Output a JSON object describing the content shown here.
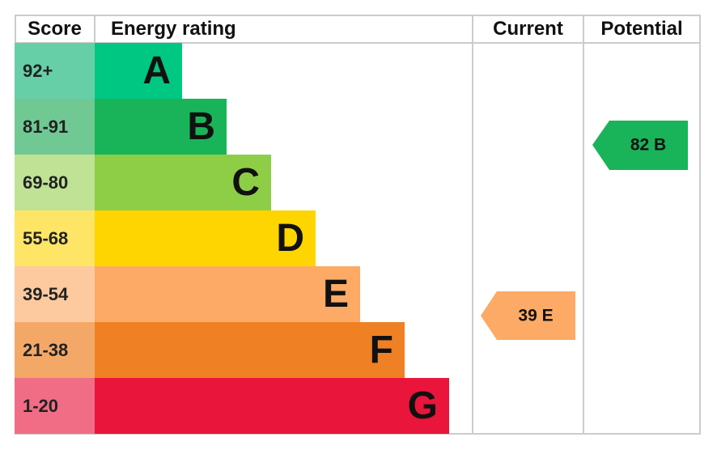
{
  "header": {
    "score": "Score",
    "energy_rating": "Energy rating",
    "current": "Current",
    "potential": "Potential"
  },
  "rows": [
    {
      "score": "92+",
      "band": "A"
    },
    {
      "score": "81-91",
      "band": "B"
    },
    {
      "score": "69-80",
      "band": "C"
    },
    {
      "score": "55-68",
      "band": "D"
    },
    {
      "score": "39-54",
      "band": "E"
    },
    {
      "score": "21-38",
      "band": "F"
    },
    {
      "score": "1-20",
      "band": "G"
    }
  ],
  "current": "39 E",
  "potential": "82 B"
}
